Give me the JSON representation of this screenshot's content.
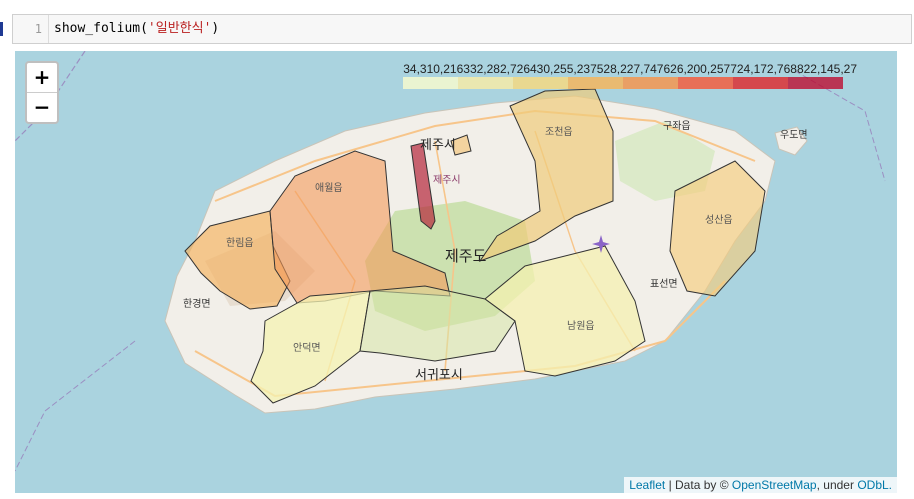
{
  "cell": {
    "line_number": "1",
    "code_func": "show_folium(",
    "code_arg": "'일반한식'",
    "code_close": ")"
  },
  "zoom": {
    "in_label": "+",
    "out_label": "−"
  },
  "legend": {
    "tick_labels": "34,310,216332,282,726430,255,237528,227,747626,200,257724,172,768822,145,27",
    "colors": [
      "#ffffcc",
      "#ffeda0",
      "#fed976",
      "#feb24c",
      "#fd8d3c",
      "#fc4e2a",
      "#e31a1c",
      "#bd0026"
    ]
  },
  "places": {
    "jeju_si": "제주시",
    "jeju_si_small": "제주시",
    "jejudo": "제주도",
    "seogwipo": "서귀포시",
    "aewol": "애월읍",
    "hallim": "한림읍",
    "hangyeong": "한경면",
    "andeok": "안덕면",
    "namwon": "남원읍",
    "pyoseon": "표선면",
    "seongsan": "성산읍",
    "gujwa": "구좌읍",
    "jocheon": "조천읍",
    "udo": "우도면"
  },
  "attribution": {
    "leaflet": "Leaflet",
    "data_by": " | Data by © ",
    "osm": "OpenStreetMap",
    "under": ", under ",
    "odbl": "ODbL."
  }
}
